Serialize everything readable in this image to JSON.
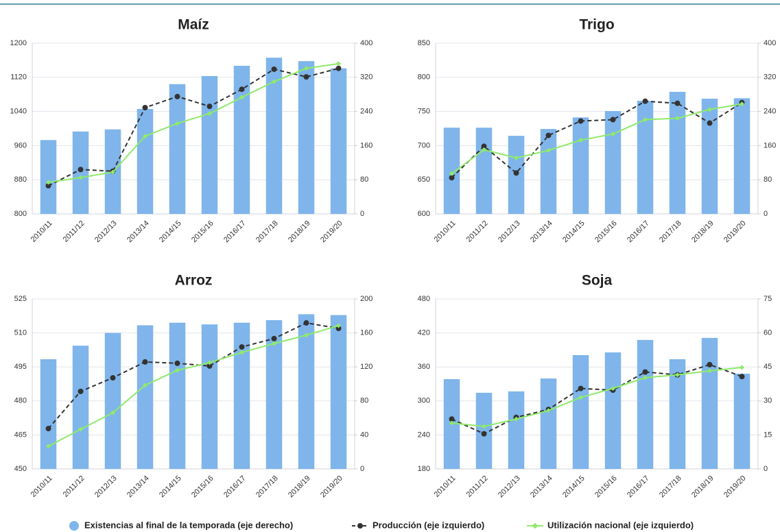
{
  "chart_data": [
    {
      "type": "combo",
      "title": "Maíz",
      "categories": [
        "2010/11",
        "2011/12",
        "2012/13",
        "2013/14",
        "2014/15",
        "2015/16",
        "2016/17",
        "2017/18",
        "2018/19",
        "2019/20"
      ],
      "ylim": [
        800,
        1200
      ],
      "yticks": [
        800,
        880,
        960,
        1040,
        1120,
        1200
      ],
      "y2lim": [
        0,
        400
      ],
      "y2ticks": [
        0,
        80,
        160,
        240,
        320,
        400
      ],
      "grid": true,
      "series": [
        {
          "name": "Existencias al final de la temporada (eje derecho)",
          "type": "bar",
          "axis": "y2",
          "color": "#7fb5ea",
          "values": [
            173,
            193,
            198,
            246,
            304,
            323,
            347,
            366,
            358,
            341
          ]
        },
        {
          "name": "Producción (eje izquierdo)",
          "type": "line",
          "color": "#333333",
          "values": [
            866,
            904,
            900,
            1049,
            1075,
            1052,
            1092,
            1139,
            1121,
            1141
          ]
        },
        {
          "name": "Utilización nacional (eje izquierdo)",
          "type": "line",
          "color": "#8fea6a",
          "values": [
            874,
            885,
            898,
            982,
            1012,
            1035,
            1073,
            1110,
            1141,
            1152
          ]
        }
      ]
    },
    {
      "type": "combo",
      "title": "Trigo",
      "categories": [
        "2010/11",
        "2011/12",
        "2012/13",
        "2013/14",
        "2014/15",
        "2015/16",
        "2016/17",
        "2017/18",
        "2018/19",
        "2019/20"
      ],
      "ylim": [
        600,
        850
      ],
      "yticks": [
        600,
        650,
        700,
        750,
        800,
        850
      ],
      "y2lim": [
        0,
        400
      ],
      "y2ticks": [
        0,
        80,
        160,
        240,
        320,
        400
      ],
      "grid": true,
      "series": [
        {
          "type": "bar",
          "axis": "y2",
          "color": "#7fb5ea",
          "values": [
            202,
            202,
            183,
            199,
            226,
            241,
            265,
            286,
            270,
            271
          ]
        },
        {
          "type": "line",
          "color": "#333333",
          "values": [
            653,
            699,
            660,
            715,
            736,
            738,
            765,
            762,
            733,
            763
          ]
        },
        {
          "type": "line",
          "color": "#8fea6a",
          "values": [
            659,
            694,
            682,
            693,
            708,
            717,
            738,
            740,
            753,
            761
          ]
        }
      ]
    },
    {
      "type": "combo",
      "title": "Arroz",
      "categories": [
        "2010/11",
        "2011/12",
        "2012/13",
        "2013/14",
        "2014/15",
        "2015/16",
        "2016/17",
        "2017/18",
        "2018/19",
        "2019/20"
      ],
      "ylim": [
        450,
        525
      ],
      "yticks": [
        450,
        465,
        480,
        495,
        510,
        525
      ],
      "y2lim": [
        0,
        200
      ],
      "y2ticks": [
        0,
        40,
        80,
        120,
        160,
        200
      ],
      "grid": true,
      "series": [
        {
          "type": "bar",
          "axis": "y2",
          "color": "#7fb5ea",
          "values": [
            129,
            145,
            160,
            169,
            172,
            170,
            172,
            175,
            182,
            181
          ]
        },
        {
          "type": "line",
          "color": "#333333",
          "values": [
            467.8,
            484.2,
            490.2,
            497.2,
            496.6,
            495.4,
            503.8,
            507.5,
            514.4,
            512.0
          ]
        },
        {
          "type": "line",
          "color": "#8fea6a",
          "values": [
            460.0,
            467.5,
            474.8,
            486.9,
            493.5,
            496.9,
            501.4,
            505.3,
            509.0,
            513.2
          ]
        }
      ]
    },
    {
      "type": "combo",
      "title": "Soja",
      "categories": [
        "2010/11",
        "2011/12",
        "2012/13",
        "2013/14",
        "2014/15",
        "2015/16",
        "2016/17",
        "2017/18",
        "2018/19",
        "2019/20"
      ],
      "ylim": [
        180,
        480
      ],
      "yticks": [
        180,
        240,
        300,
        360,
        420,
        480
      ],
      "y2lim": [
        0,
        75
      ],
      "y2ticks": [
        0,
        15,
        30,
        45,
        60,
        75
      ],
      "grid": true,
      "series": [
        {
          "type": "bar",
          "axis": "y2",
          "color": "#7fb5ea",
          "values": [
            39.6,
            33.6,
            34.2,
            39.9,
            50.2,
            51.4,
            56.9,
            48.4,
            57.8,
            42.0
          ]
        },
        {
          "type": "line",
          "color": "#333333",
          "values": [
            268,
            242,
            271,
            285,
            322,
            319,
            351,
            346,
            364,
            343
          ]
        },
        {
          "type": "line",
          "color": "#8fea6a",
          "values": [
            261,
            255,
            268,
            283,
            306,
            322,
            341,
            346,
            353,
            359
          ]
        }
      ]
    }
  ]
}
